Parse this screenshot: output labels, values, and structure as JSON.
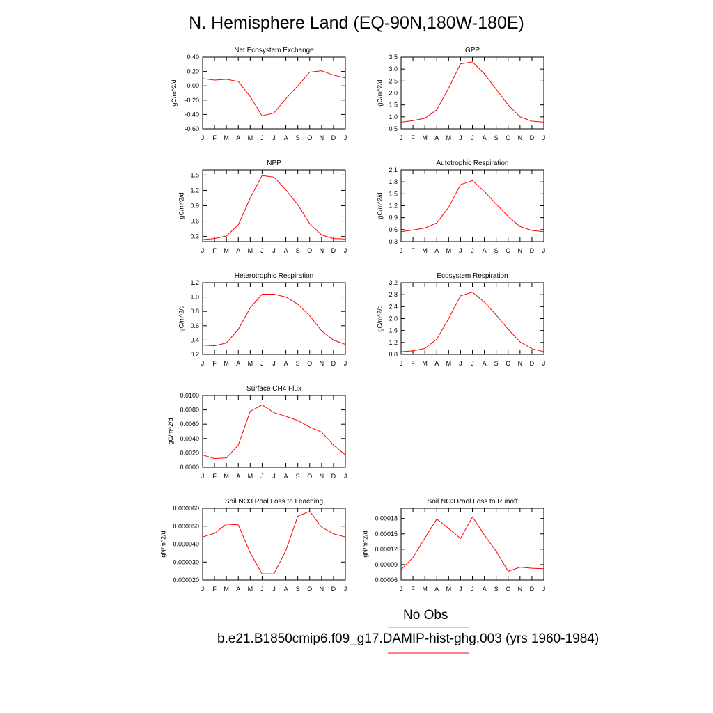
{
  "title": "N. Hemisphere Land (EQ-90N,180W-180E)",
  "months": [
    "J",
    "F",
    "M",
    "A",
    "M",
    "J",
    "J",
    "A",
    "S",
    "O",
    "N",
    "D",
    "J"
  ],
  "legend": {
    "obs_label": "No Obs",
    "obs_color": "#8888ff",
    "model_label": "b.e21.B1850cmip6.f09_g17.DAMIP-hist-ghg.003 (yrs 1960-1984)",
    "model_color": "#ff0000"
  },
  "chart_data": [
    {
      "type": "line",
      "title": "Net Ecosystem Exchange",
      "ylabel": "gC/m^2/d",
      "ylim": [
        -0.6,
        0.4
      ],
      "yticks": [
        "0.40",
        "0.20",
        "0.00",
        "-0.20",
        "-0.40",
        "-0.60"
      ],
      "values": [
        0.1,
        0.08,
        0.09,
        0.06,
        -0.15,
        -0.42,
        -0.38,
        -0.18,
        0.0,
        0.19,
        0.21,
        0.15,
        0.11
      ]
    },
    {
      "type": "line",
      "title": "GPP",
      "ylabel": "gC/m^2/d",
      "ylim": [
        0.5,
        3.5
      ],
      "yticks": [
        "3.5",
        "3.0",
        "2.5",
        "2.0",
        "1.5",
        "1.0",
        "0.5"
      ],
      "values": [
        0.78,
        0.84,
        0.94,
        1.3,
        2.2,
        3.22,
        3.3,
        2.8,
        2.15,
        1.5,
        1.0,
        0.82,
        0.78
      ]
    },
    {
      "type": "line",
      "title": "NPP",
      "ylabel": "gC/m^2/d",
      "ylim": [
        0.2,
        1.6
      ],
      "yticks": [
        "1.5",
        "1.2",
        "0.9",
        "0.6",
        "0.3"
      ],
      "values": [
        0.24,
        0.26,
        0.31,
        0.53,
        1.05,
        1.49,
        1.46,
        1.21,
        0.92,
        0.55,
        0.33,
        0.26,
        0.25
      ]
    },
    {
      "type": "line",
      "title": "Autotrophic Respiration",
      "ylabel": "gC/m^2/d",
      "ylim": [
        0.3,
        2.1
      ],
      "yticks": [
        "2.1",
        "1.8",
        "1.5",
        "1.2",
        "0.9",
        "0.6",
        "0.3"
      ],
      "values": [
        0.55,
        0.59,
        0.64,
        0.77,
        1.16,
        1.73,
        1.83,
        1.56,
        1.24,
        0.93,
        0.68,
        0.58,
        0.55
      ]
    },
    {
      "type": "line",
      "title": "Heterotrophic Respiration",
      "ylabel": "gC/m^2/d",
      "ylim": [
        0.2,
        1.2
      ],
      "yticks": [
        "1.2",
        "1.0",
        "0.8",
        "0.6",
        "0.4",
        "0.2"
      ],
      "values": [
        0.33,
        0.32,
        0.36,
        0.55,
        0.85,
        1.04,
        1.04,
        1.0,
        0.9,
        0.74,
        0.53,
        0.4,
        0.34
      ]
    },
    {
      "type": "line",
      "title": "Ecosystem Respiration",
      "ylabel": "gC/m^2/d",
      "ylim": [
        0.8,
        3.2
      ],
      "yticks": [
        "3.2",
        "2.8",
        "2.4",
        "2.0",
        "1.6",
        "1.2",
        "0.8"
      ],
      "values": [
        0.89,
        0.92,
        1.0,
        1.31,
        2.0,
        2.76,
        2.88,
        2.55,
        2.12,
        1.64,
        1.22,
        0.99,
        0.89
      ]
    },
    {
      "type": "line",
      "title": "Surface CH4 Flux",
      "ylabel": "gC/m^2/d",
      "ylim": [
        0.0,
        0.01
      ],
      "yticks": [
        "0.0100",
        "0.0080",
        "0.0060",
        "0.0040",
        "0.0020",
        "0.0000"
      ],
      "values": [
        0.0017,
        0.0012,
        0.0013,
        0.0031,
        0.0078,
        0.0087,
        0.0076,
        0.0071,
        0.0065,
        0.0056,
        0.0049,
        0.0031,
        0.0017
      ]
    },
    {
      "type": "line",
      "title": "Soil NO3 Pool Loss to Leaching",
      "ylabel": "gN/m^2/d",
      "ylim": [
        2e-05,
        6e-05
      ],
      "yticks": [
        "0.000060",
        "0.000050",
        "0.000040",
        "0.000030",
        "0.000020"
      ],
      "values": [
        4.4e-05,
        4.6e-05,
        5.12e-05,
        5.07e-05,
        3.52e-05,
        2.34e-05,
        2.35e-05,
        3.65e-05,
        5.56e-05,
        5.83e-05,
        4.95e-05,
        4.58e-05,
        4.4e-05
      ]
    },
    {
      "type": "line",
      "title": "Soil NO3 Pool Loss to Runoff",
      "ylabel": "gN/m^2/d",
      "ylim": [
        6e-05,
        0.0002
      ],
      "yticks": [
        "0.00018",
        "0.00015",
        "0.00012",
        "0.00009",
        "0.00006"
      ],
      "values": [
        8e-05,
        0.000104,
        0.000142,
        0.000179,
        0.000161,
        0.000141,
        0.000183,
        0.000148,
        0.000116,
        7.7e-05,
        8.5e-05,
        8.3e-05,
        8.2e-05
      ]
    }
  ]
}
